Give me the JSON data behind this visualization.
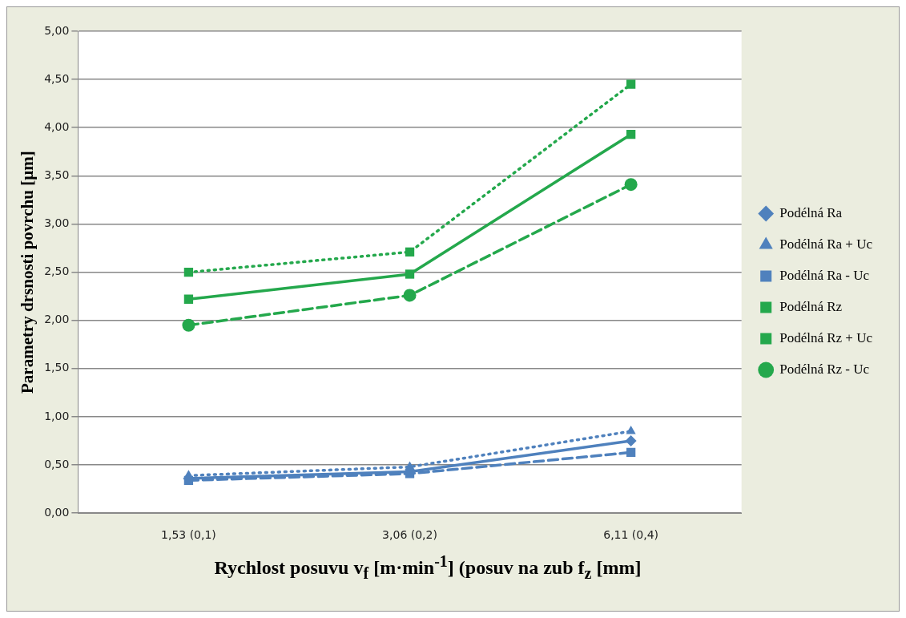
{
  "chart_data": {
    "type": "line",
    "xlabel": "Rychlost posuvu v$_{f}$ [m·min$^{-1}$] (posuv na zub f$_{z}$ [mm]",
    "ylabel": "Parametry drsnosti povrchu [µm]",
    "categories": [
      "1,53 (0,1)",
      "3,06 (0,2)",
      "6,11 (0,4)"
    ],
    "series": [
      {
        "name": "Podélná Ra",
        "color": "#4f81bd",
        "marker": "diamond",
        "line_style": "solid",
        "values": [
          0.36,
          0.43,
          0.75
        ]
      },
      {
        "name": "Podélná Ra + Uc",
        "color": "#4f81bd",
        "marker": "triangle",
        "line_style": "dotted",
        "values": [
          0.39,
          0.48,
          0.85
        ]
      },
      {
        "name": "Podélná Ra - Uc",
        "color": "#4f81bd",
        "marker": "square",
        "line_style": "dashed",
        "values": [
          0.34,
          0.41,
          0.63
        ]
      },
      {
        "name": "Podélná Rz",
        "color": "#24a84c",
        "marker": "square",
        "line_style": "solid",
        "values": [
          2.22,
          2.48,
          3.93
        ]
      },
      {
        "name": "Podélná Rz + Uc",
        "color": "#24a84c",
        "marker": "square",
        "line_style": "dotted",
        "values": [
          2.5,
          2.71,
          4.45
        ]
      },
      {
        "name": "Podélná Rz - Uc",
        "color": "#24a84c",
        "marker": "circle",
        "line_style": "dashed",
        "values": [
          1.95,
          2.26,
          3.41
        ]
      }
    ],
    "ylim": [
      0,
      5
    ],
    "yticks": [
      {
        "value": 0,
        "label": "0,00"
      },
      {
        "value": 0.5,
        "label": "0,50"
      },
      {
        "value": 1,
        "label": "1,00"
      },
      {
        "value": 1.5,
        "label": "1,50"
      },
      {
        "value": 2,
        "label": "2,00"
      },
      {
        "value": 2.5,
        "label": "2,50"
      },
      {
        "value": 3,
        "label": "3,00"
      },
      {
        "value": 3.5,
        "label": "3,50"
      },
      {
        "value": 4,
        "label": "4,00"
      },
      {
        "value": 4.5,
        "label": "4,50"
      },
      {
        "value": 5,
        "label": "5,00"
      }
    ],
    "grid": "y",
    "legend": "right"
  }
}
